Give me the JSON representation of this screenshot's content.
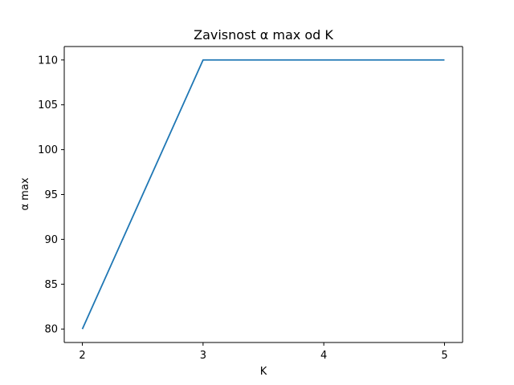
{
  "chart_data": {
    "type": "line",
    "title": "Zavisnost α max od K",
    "xlabel": "K",
    "ylabel": "α max",
    "xlim": [
      1.85,
      5.15
    ],
    "ylim": [
      78.5,
      111.5
    ],
    "x_ticks": [
      2,
      3,
      4,
      5
    ],
    "y_ticks": [
      80,
      85,
      90,
      95,
      100,
      105,
      110
    ],
    "grid": false,
    "series": [
      {
        "x": [
          2,
          3,
          4,
          5
        ],
        "values": [
          80,
          110,
          110,
          110
        ],
        "color": "#1f77b4"
      }
    ]
  }
}
